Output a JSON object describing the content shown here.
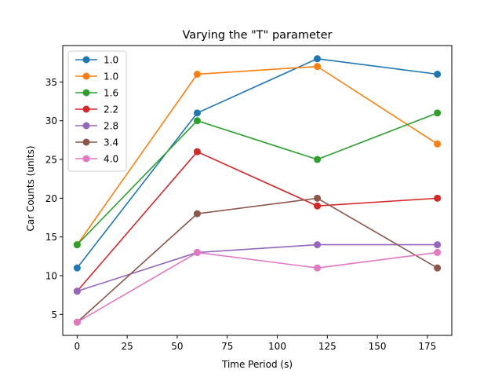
{
  "chart_data": {
    "type": "line",
    "title": "Varying the \"T\" parameter",
    "xlabel": "Time Period (s)",
    "ylabel": "Car Counts (units)",
    "x": [
      0,
      60,
      120,
      180
    ],
    "xlim": [
      -7.2,
      187.2
    ],
    "ylim": [
      2.3,
      39.7
    ],
    "xticks": [
      0,
      25,
      50,
      75,
      100,
      125,
      150,
      175
    ],
    "yticks": [
      5,
      10,
      15,
      20,
      25,
      30,
      35
    ],
    "grid": false,
    "legend_position": "top-left",
    "series": [
      {
        "name": "1.0",
        "color": "#1f77b4",
        "values": [
          11,
          31,
          38,
          36
        ]
      },
      {
        "name": "1.0",
        "color": "#ff7f0e",
        "values": [
          14,
          36,
          37,
          27
        ]
      },
      {
        "name": "1.6",
        "color": "#2ca02c",
        "values": [
          14,
          30,
          25,
          31
        ]
      },
      {
        "name": "2.2",
        "color": "#d62728",
        "values": [
          8,
          26,
          19,
          20
        ]
      },
      {
        "name": "2.8",
        "color": "#9467bd",
        "values": [
          8,
          13,
          14,
          14
        ]
      },
      {
        "name": "3.4",
        "color": "#8c564b",
        "values": [
          4,
          18,
          20,
          11
        ]
      },
      {
        "name": "4.0",
        "color": "#e377c2",
        "values": [
          4,
          13,
          11,
          13
        ]
      }
    ]
  }
}
